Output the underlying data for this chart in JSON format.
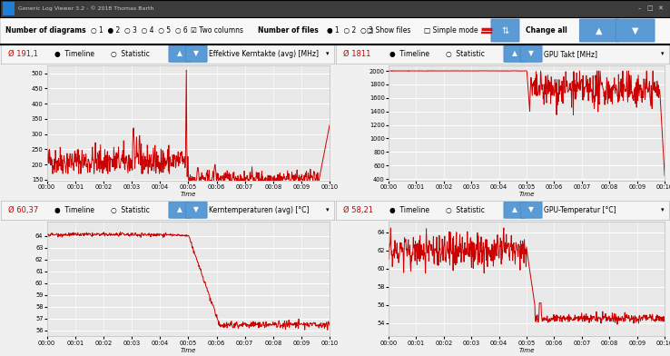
{
  "bg_color": "#f0f0f0",
  "plot_bg": "#e8e8e8",
  "line_color": "#cc0000",
  "line_width": 0.7,
  "title_bar": "Generic Log Viewer 3.2 - © 2018 Thomas Barth",
  "panels": [
    {
      "avg_label": "Ø 191,1",
      "title": "Effektive Kerntakte (avg) [MHz]",
      "ylim": [
        148,
        525
      ],
      "yticks": [
        150,
        200,
        250,
        300,
        350,
        400,
        450,
        500
      ]
    },
    {
      "avg_label": "Ø 1811",
      "title": "GPU Takt [MHz]",
      "ylim": [
        380,
        2080
      ],
      "yticks": [
        400,
        600,
        800,
        1000,
        1200,
        1400,
        1600,
        1800,
        2000
      ]
    },
    {
      "avg_label": "Ø 60,37",
      "title": "Kerntemperaturen (avg) [°C]",
      "ylim": [
        55.5,
        65.2
      ],
      "yticks": [
        56,
        57,
        58,
        59,
        60,
        61,
        62,
        63,
        64
      ]
    },
    {
      "avg_label": "Ø 58,21",
      "title": "GPU-Temperatur [°C]",
      "ylim": [
        52.5,
        65.2
      ],
      "yticks": [
        54,
        56,
        58,
        60,
        62,
        64
      ]
    }
  ],
  "time_ticks": [
    "00:00",
    "00:01",
    "00:02",
    "00:03",
    "00:04",
    "00:05",
    "00:06",
    "00:07",
    "00:08",
    "00:09",
    "00:10"
  ],
  "n_points": 660,
  "switch_point": 330,
  "toolbar_bg": "#f8f8f8",
  "header_bg": "#f5f5f5",
  "btn_color": "#5b9bd5"
}
